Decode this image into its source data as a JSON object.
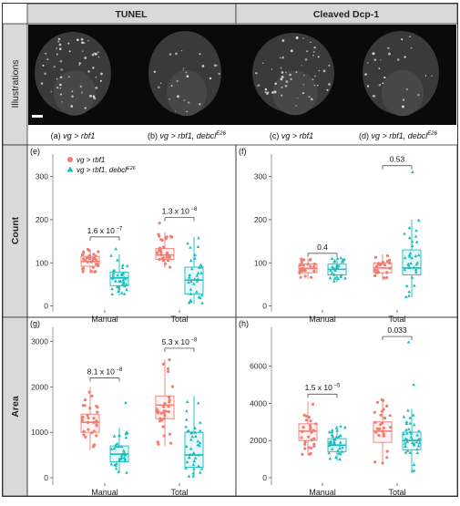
{
  "strip": {
    "top_labels": [
      "TUNEL",
      "Cleaved Dcp-1"
    ],
    "row_labels": [
      "Illustrations",
      "Count",
      "Area"
    ]
  },
  "illustrations": {
    "captions": [
      {
        "prefix": "(a) ",
        "genotype": "vg > rbf1",
        "suffix": ""
      },
      {
        "prefix": "(b) ",
        "genotype": "vg > rbf1, debcl",
        "suffix": "E26"
      },
      {
        "prefix": "(c) ",
        "genotype": "vg > rbf1",
        "suffix": ""
      },
      {
        "prefix": "(d) ",
        "genotype": "vg > rbf1, debcl",
        "suffix": "E26"
      }
    ]
  },
  "legend": {
    "entries": [
      {
        "label": "vg > rbf1",
        "sup": "",
        "shape": "circle",
        "color": "#F07C72"
      },
      {
        "label": "vg > rbf1, debcl",
        "sup": "E26",
        "shape": "triangle",
        "color": "#19BCBE"
      }
    ],
    "placement": "top-left of panel (e)"
  },
  "colors": {
    "group1": "#F07C72",
    "group2": "#19BCBE",
    "strip_bg": "#D9D9D9",
    "border": "#333333"
  },
  "chart_data": [
    {
      "type": "box",
      "panel": "(e)",
      "ylabel": "Count",
      "categories": [
        "Manual",
        "Total"
      ],
      "ylim": [
        -5,
        335
      ],
      "yticks": [
        0,
        100,
        200,
        300
      ],
      "series": [
        {
          "name": "vg > rbf1",
          "boxes": [
            {
              "q1": 92,
              "median": 103,
              "q3": 115,
              "lo": 75,
              "hi": 132,
              "seed": 11,
              "n": 30,
              "outliers": []
            },
            {
              "q1": 108,
              "median": 118,
              "q3": 133,
              "lo": 88,
              "hi": 170,
              "seed": 12,
              "n": 30,
              "outliers": [
                192
              ]
            }
          ]
        },
        {
          "name": "vg > rbf1, debcl E26",
          "boxes": [
            {
              "q1": 47,
              "median": 65,
              "q3": 78,
              "lo": 25,
              "hi": 120,
              "seed": 13,
              "n": 34,
              "outliers": [
                132
              ]
            },
            {
              "q1": 28,
              "median": 60,
              "q3": 90,
              "lo": 5,
              "hi": 160,
              "seed": 14,
              "n": 34,
              "outliers": []
            }
          ]
        }
      ],
      "pvalues": [
        {
          "base": "1.6 x 10",
          "exp": "−7",
          "y": 160
        },
        {
          "base": "1.3 x 10",
          "exp": "−8",
          "y": 205
        }
      ]
    },
    {
      "type": "box",
      "panel": "(f)",
      "ylabel": "Count",
      "categories": [
        "Manual",
        "Total"
      ],
      "ylim": [
        -5,
        335
      ],
      "yticks": [
        0,
        100,
        200,
        300
      ],
      "series": [
        {
          "name": "vg > rbf1",
          "boxes": [
            {
              "q1": 77,
              "median": 87,
              "q3": 97,
              "lo": 62,
              "hi": 110,
              "seed": 21,
              "n": 25,
              "outliers": []
            },
            {
              "q1": 77,
              "median": 88,
              "q3": 100,
              "lo": 60,
              "hi": 120,
              "seed": 22,
              "n": 25,
              "outliers": []
            }
          ]
        },
        {
          "name": "vg > rbf1, debcl E26",
          "boxes": [
            {
              "q1": 72,
              "median": 85,
              "q3": 97,
              "lo": 55,
              "hi": 112,
              "seed": 23,
              "n": 32,
              "outliers": []
            },
            {
              "q1": 72,
              "median": 88,
              "q3": 130,
              "lo": 20,
              "hi": 200,
              "seed": 24,
              "n": 32,
              "outliers": [
                310
              ]
            }
          ]
        }
      ],
      "pvalues": [
        {
          "base": "0.4",
          "exp": "",
          "y": 122
        },
        {
          "base": "0.53",
          "exp": "",
          "y": 325
        }
      ]
    },
    {
      "type": "box",
      "panel": "(g)",
      "ylabel": "Area",
      "categories": [
        "Manual",
        "Total"
      ],
      "ylim": [
        -80,
        3150
      ],
      "yticks": [
        0,
        1000,
        2000,
        3000
      ],
      "series": [
        {
          "name": "vg > rbf1",
          "boxes": [
            {
              "q1": 1000,
              "median": 1220,
              "q3": 1400,
              "lo": 600,
              "hi": 2000,
              "seed": 31,
              "n": 30,
              "outliers": []
            },
            {
              "q1": 1300,
              "median": 1600,
              "q3": 1800,
              "lo": 700,
              "hi": 2600,
              "seed": 32,
              "n": 32,
              "outliers": []
            }
          ]
        },
        {
          "name": "vg > rbf1, debcl E26",
          "boxes": [
            {
              "q1": 350,
              "median": 520,
              "q3": 700,
              "lo": 100,
              "hi": 1100,
              "seed": 33,
              "n": 36,
              "outliers": [
                1650
              ]
            },
            {
              "q1": 230,
              "median": 500,
              "q3": 1000,
              "lo": 10,
              "hi": 1800,
              "seed": 34,
              "n": 40,
              "outliers": []
            }
          ]
        }
      ],
      "pvalues": [
        {
          "base": "8.1 x 10",
          "exp": "−8",
          "y": 2200
        },
        {
          "base": "5.3 x 10",
          "exp": "−8",
          "y": 2850
        }
      ]
    },
    {
      "type": "box",
      "panel": "(h)",
      "ylabel": "Area",
      "categories": [
        "Manual",
        "Total"
      ],
      "ylim": [
        -200,
        7700
      ],
      "yticks": [
        0,
        2000,
        4000,
        6000
      ],
      "series": [
        {
          "name": "vg > rbf1",
          "boxes": [
            {
              "q1": 2000,
              "median": 2500,
              "q3": 2900,
              "lo": 1200,
              "hi": 4100,
              "seed": 41,
              "n": 28,
              "outliers": []
            },
            {
              "q1": 1900,
              "median": 2500,
              "q3": 3000,
              "lo": 700,
              "hi": 4200,
              "seed": 42,
              "n": 28,
              "outliers": []
            }
          ]
        },
        {
          "name": "vg > rbf1, debcl E26",
          "boxes": [
            {
              "q1": 1400,
              "median": 1750,
              "q3": 2100,
              "lo": 900,
              "hi": 2800,
              "seed": 43,
              "n": 34,
              "outliers": []
            },
            {
              "q1": 1500,
              "median": 2000,
              "q3": 2450,
              "lo": 300,
              "hi": 3700,
              "seed": 44,
              "n": 40,
              "outliers": [
                5000,
                7300
              ]
            }
          ]
        }
      ],
      "pvalues": [
        {
          "base": "1.5 x 10",
          "exp": "−5",
          "y": 4500
        },
        {
          "base": "0.033",
          "exp": "",
          "y": 7600
        }
      ]
    }
  ]
}
